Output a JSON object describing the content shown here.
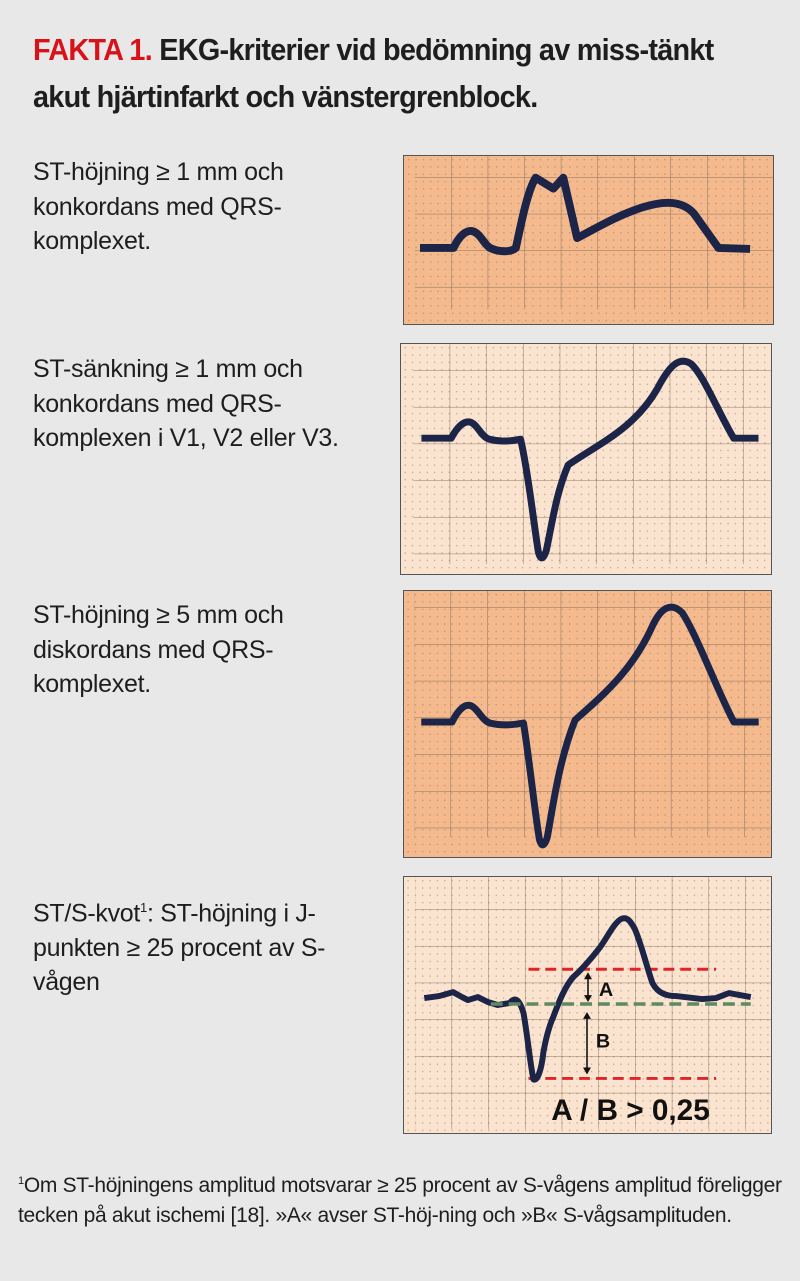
{
  "title": {
    "lead": "FAKTA 1.",
    "text": "EKG-kriterier vid bedömning av miss-tänkt akut hjärtinfarkt och vänstergrenblock."
  },
  "criteria": [
    {
      "text": "ST-höjning ≥ 1 mm och konkordans med QRS-komplexet."
    },
    {
      "text": "ST-sänkning ≥ 1 mm och konkordans med QRS-komplexen i V1, V2 eller V3."
    },
    {
      "text": "ST-höjning ≥ 5 mm och diskordans med QRS-komplexet."
    },
    {
      "text_lead": "ST/S-kvot",
      "footnote_mark": "1",
      "text_rest": ": ST-höjning i J-punkten ≥ 25 procent av S-vågen"
    }
  ],
  "diagram": {
    "label_a": "A",
    "label_b": "B",
    "formula": "A / B > 0,25"
  },
  "footnote": {
    "mark": "1",
    "text": "Om ST-höjningens amplitud motsvarar ≥ 25 procent av S-vågens amplitud föreligger tecken på akut ischemi [18]. »A« avser ST-höj-ning och »B« S-vågsamplituden."
  },
  "colors": {
    "accent_red": "#d9121a",
    "paper_dark": "#f4ba8e",
    "paper_light": "#fbe4cf",
    "trace": "#1c2447",
    "dash_red": "#e0242a",
    "dash_green": "#5d8a62"
  }
}
